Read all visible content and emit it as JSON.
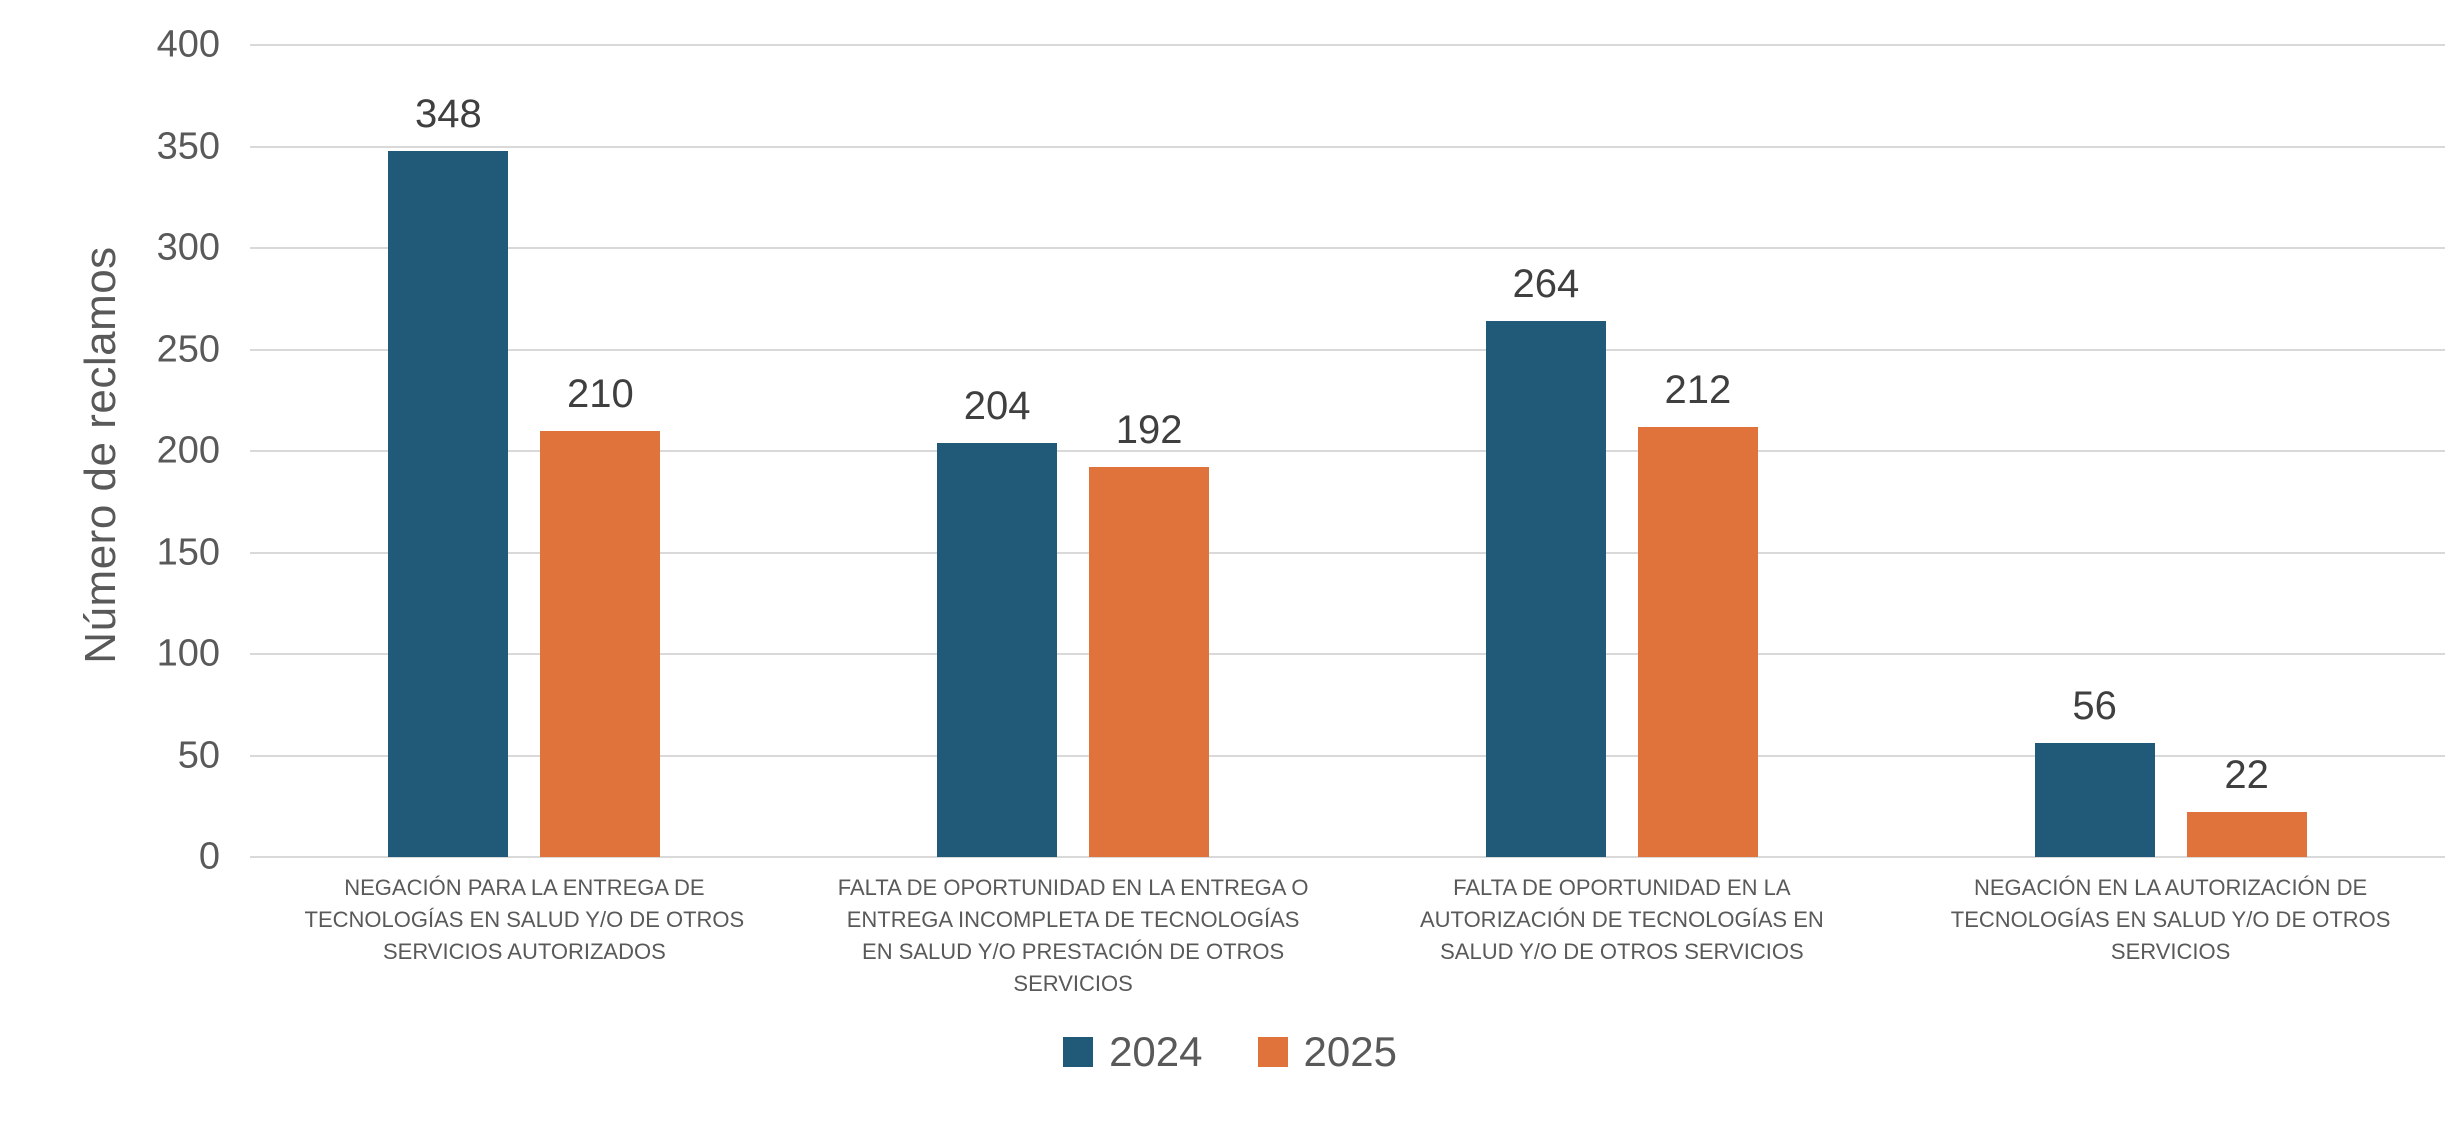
{
  "chart": {
    "y_axis_title": "Número de reclamos"
  },
  "chart_data": {
    "type": "bar",
    "title": "",
    "xlabel": "",
    "ylabel": "Número de reclamos",
    "ylim": [
      0,
      400
    ],
    "y_tick_step": 50,
    "y_ticks": [
      400,
      350,
      300,
      250,
      200,
      150,
      100,
      50,
      0
    ],
    "grid": true,
    "legend_position": "bottom",
    "categories": [
      "NEGACIÓN PARA LA ENTREGA DE TECNOLOGÍAS EN SALUD Y/O DE OTROS SERVICIOS AUTORIZADOS",
      "FALTA DE OPORTUNIDAD EN LA ENTREGA O ENTREGA INCOMPLETA DE TECNOLOGÍAS EN SALUD Y/O PRESTACIÓN DE OTROS SERVICIOS",
      "FALTA DE OPORTUNIDAD EN LA AUTORIZACIÓN DE TECNOLOGÍAS EN SALUD Y/O DE OTROS SERVICIOS",
      "NEGACIÓN EN LA AUTORIZACIÓN DE TECNOLOGÍAS EN SALUD Y/O DE OTROS SERVICIOS"
    ],
    "series": [
      {
        "name": "2024",
        "color": "#205A78",
        "values": [
          348,
          204,
          264,
          56
        ]
      },
      {
        "name": "2025",
        "color": "#E0733C",
        "values": [
          210,
          192,
          212,
          22
        ]
      }
    ]
  },
  "colors": {
    "gridline": "#d9d9d9",
    "tick_text": "#595959",
    "value_text": "#3f3f3f",
    "series_2024": "#205A78",
    "series_2025": "#E0733C"
  }
}
